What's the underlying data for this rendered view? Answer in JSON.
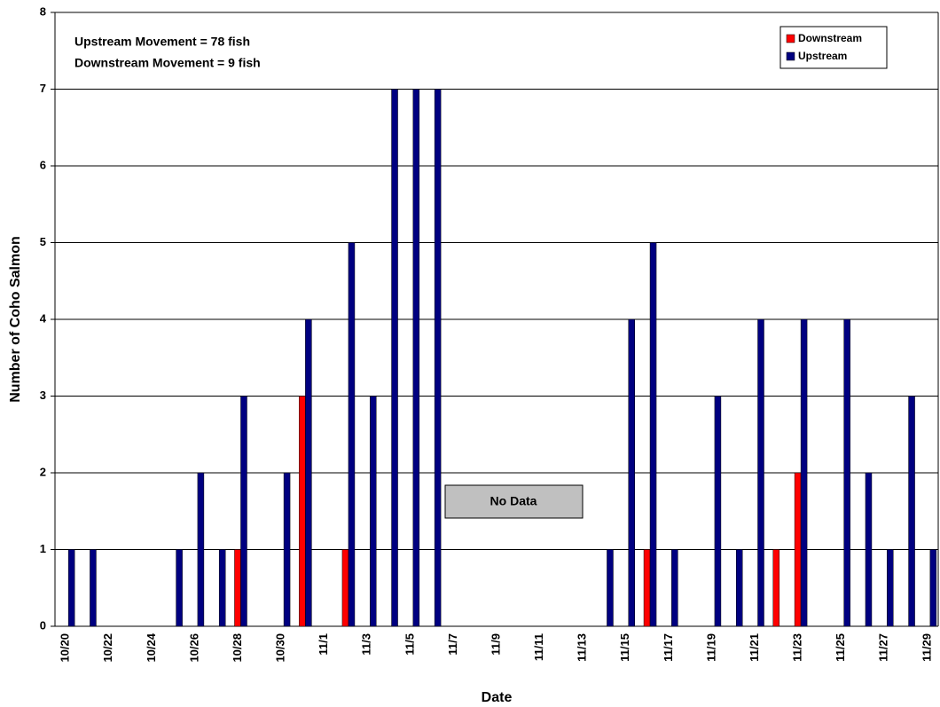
{
  "chart_data": {
    "type": "bar",
    "x_label": "Date",
    "y_label": "Number of Coho Salmon",
    "annotations": [
      "Upstream Movement = 78 fish",
      "Downstream Movement = 9 fish",
      "No Data"
    ],
    "categories": [
      "10/20",
      null,
      "10/22",
      null,
      "10/24",
      null,
      "10/26",
      null,
      "10/28",
      null,
      "10/30",
      null,
      "11/1",
      null,
      "11/3",
      null,
      "11/5",
      null,
      "11/7",
      null,
      "11/9",
      null,
      "11/11",
      null,
      "11/13",
      null,
      "11/15",
      null,
      "11/17",
      null,
      "11/19",
      null,
      "11/21",
      null,
      "11/23",
      null,
      "11/25",
      null,
      "11/27",
      null,
      "11/29"
    ],
    "series": [
      {
        "name": "Downstream",
        "color": "#ff0000",
        "values": [
          0,
          0,
          0,
          0,
          0,
          0,
          0,
          0,
          1,
          0,
          0,
          3,
          0,
          1,
          0,
          0,
          0,
          0,
          null,
          null,
          null,
          null,
          null,
          null,
          null,
          0,
          0,
          1,
          0,
          0,
          0,
          0,
          0,
          1,
          2,
          0,
          0,
          0,
          0,
          0,
          0
        ]
      },
      {
        "name": "Upstream",
        "color": "#000080",
        "values": [
          1,
          1,
          0,
          0,
          0,
          1,
          2,
          1,
          3,
          0,
          2,
          4,
          0,
          5,
          3,
          7,
          7,
          7,
          null,
          null,
          null,
          null,
          null,
          null,
          null,
          1,
          4,
          5,
          1,
          0,
          3,
          1,
          4,
          0,
          4,
          0,
          4,
          2,
          1,
          3,
          1
        ]
      }
    ],
    "ylim": [
      0,
      8
    ],
    "yticks": [
      0,
      1,
      2,
      3,
      4,
      5,
      6,
      7,
      8
    ],
    "grid": true,
    "legend": "upper right"
  }
}
